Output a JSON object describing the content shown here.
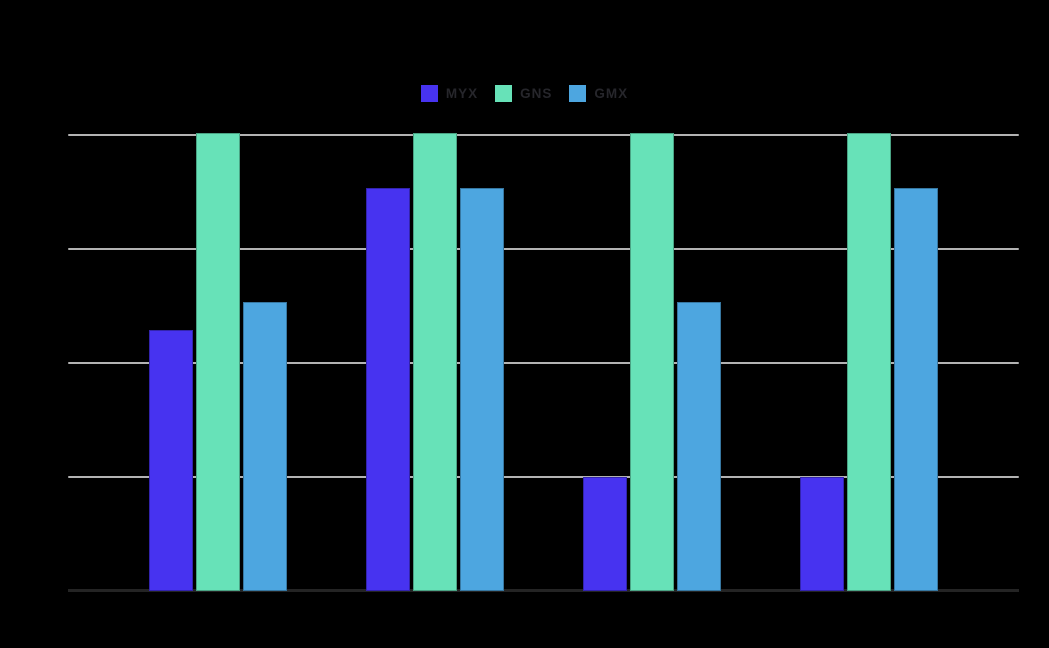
{
  "chart_data": {
    "type": "bar",
    "title": "",
    "categories": [
      "",
      "",
      "",
      ""
    ],
    "series": [
      {
        "name": "MYX",
        "color": "#4733F0",
        "values": [
          57,
          88,
          25,
          25
        ]
      },
      {
        "name": "GNS",
        "color": "#67E2B8",
        "values": [
          100,
          100,
          100,
          100
        ]
      },
      {
        "name": "GMX",
        "color": "#4DA6E0",
        "values": [
          63,
          88,
          63,
          88
        ]
      }
    ],
    "ylim": [
      0,
      100
    ],
    "grid": true,
    "gridline_values": [
      100,
      75,
      50,
      25
    ],
    "baseline_value": 0,
    "legend_position": "top-center",
    "tick_labels_visible": false
  },
  "colors": {
    "background": "#000000",
    "gridline": "#B3B3B3",
    "axis_line": "#242424",
    "legend_text": "#26262B"
  }
}
